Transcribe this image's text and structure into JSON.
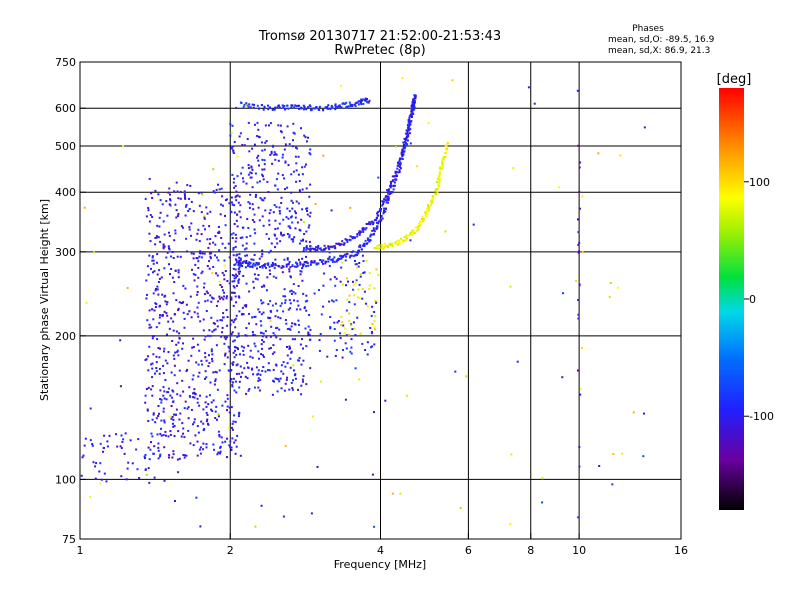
{
  "header": {
    "title_line1": "Tromsø 20130717 21:52:00-21:53:43",
    "title_line2": "RwPretec (8p)"
  },
  "phase_info": {
    "label": "Phases",
    "line_o": "mean, sd,O: -89.5, 16.9",
    "line_x": "mean, sd,X:  86.9, 21.3"
  },
  "chart_data": {
    "type": "scatter",
    "xlabel": "Frequency [MHz]",
    "ylabel": "Stationary phase Virtual Height [km]",
    "xscale": "log",
    "yscale": "log",
    "xlim": [
      1,
      16
    ],
    "ylim": [
      75,
      750
    ],
    "x_ticks": [
      {
        "value": 1,
        "label": "1"
      },
      {
        "value": 2,
        "label": "2"
      },
      {
        "value": 4,
        "label": "4"
      },
      {
        "value": 6,
        "label": "6"
      },
      {
        "value": 8,
        "label": "8"
      },
      {
        "value": 10,
        "label": "10"
      },
      {
        "value": 16,
        "label": "16"
      }
    ],
    "x_gridlines": [
      2,
      4,
      6,
      8,
      10
    ],
    "y_ticks": [
      {
        "value": 75,
        "label": "75"
      },
      {
        "value": 100,
        "label": "100"
      },
      {
        "value": 200,
        "label": "200"
      },
      {
        "value": 300,
        "label": "300"
      },
      {
        "value": 400,
        "label": "400"
      },
      {
        "value": 500,
        "label": "500"
      },
      {
        "value": 600,
        "label": "600"
      },
      {
        "value": 750,
        "label": "750"
      }
    ],
    "y_gridlines": [
      100,
      200,
      300,
      400,
      500,
      600
    ],
    "colorbar": {
      "unit_label": "[deg]",
      "range": [
        -180,
        180
      ],
      "ticks": [
        {
          "value": 100,
          "label": "100"
        },
        {
          "value": 0,
          "label": "0"
        },
        {
          "value": -100,
          "label": "-100"
        }
      ]
    },
    "traces": [
      {
        "desc": "O-mode F trace",
        "phase": -95,
        "points": [
          [
            2.05,
            285
          ],
          [
            2.2,
            282
          ],
          [
            2.4,
            280
          ],
          [
            2.7,
            282
          ],
          [
            3.0,
            285
          ],
          [
            3.3,
            290
          ],
          [
            3.6,
            300
          ],
          [
            3.8,
            320
          ],
          [
            4.0,
            350
          ],
          [
            4.2,
            400
          ],
          [
            4.4,
            460
          ],
          [
            4.55,
            530
          ],
          [
            4.65,
            600
          ],
          [
            4.7,
            640
          ]
        ]
      },
      {
        "desc": "upper O trace",
        "phase": -100,
        "points": [
          [
            2.8,
            305
          ],
          [
            3.0,
            305
          ],
          [
            3.3,
            310
          ],
          [
            3.6,
            325
          ],
          [
            3.9,
            350
          ],
          [
            4.1,
            390
          ],
          [
            4.3,
            440
          ],
          [
            4.5,
            520
          ],
          [
            4.6,
            580
          ],
          [
            4.65,
            620
          ]
        ]
      },
      {
        "desc": "X-mode trace",
        "phase": 85,
        "points": [
          [
            3.9,
            305
          ],
          [
            4.2,
            310
          ],
          [
            4.5,
            320
          ],
          [
            4.8,
            340
          ],
          [
            5.0,
            370
          ],
          [
            5.2,
            410
          ],
          [
            5.3,
            450
          ],
          [
            5.45,
            510
          ]
        ]
      },
      {
        "desc": "top F2 band",
        "phase": -90,
        "points": [
          [
            2.1,
            610
          ],
          [
            2.4,
            600
          ],
          [
            2.7,
            605
          ],
          [
            3.0,
            600
          ],
          [
            3.3,
            605
          ],
          [
            3.6,
            615
          ],
          [
            3.8,
            625
          ]
        ]
      }
    ],
    "clusters": [
      {
        "desc": "E/F1 spread",
        "x_range": [
          1.35,
          2.1
        ],
        "y_range": [
          110,
          420
        ],
        "count": 700,
        "phase": -105
      },
      {
        "desc": "F spread",
        "x_range": [
          2.0,
          2.9
        ],
        "y_range": [
          150,
          560
        ],
        "count": 600,
        "phase": -100
      },
      {
        "desc": "low E trace",
        "x_range": [
          1.0,
          1.5
        ],
        "y_range": [
          98,
          125
        ],
        "count": 60,
        "phase": -100
      },
      {
        "desc": "mid scatter",
        "x_range": [
          3.0,
          3.9
        ],
        "y_range": [
          180,
          300
        ],
        "count": 90,
        "phase": -90
      },
      {
        "desc": "yellow scatter",
        "x_range": [
          3.3,
          4.0
        ],
        "y_range": [
          200,
          290
        ],
        "count": 40,
        "phase": 90
      },
      {
        "desc": "sparse noise",
        "x_range": [
          1.0,
          14.0
        ],
        "y_range": [
          78,
          700
        ],
        "count": 110,
        "phase": 0
      },
      {
        "desc": "10 MHz interference",
        "x_range": [
          9.95,
          10.05
        ],
        "y_range": [
          80,
          680
        ],
        "count": 20,
        "phase": -120
      }
    ]
  }
}
